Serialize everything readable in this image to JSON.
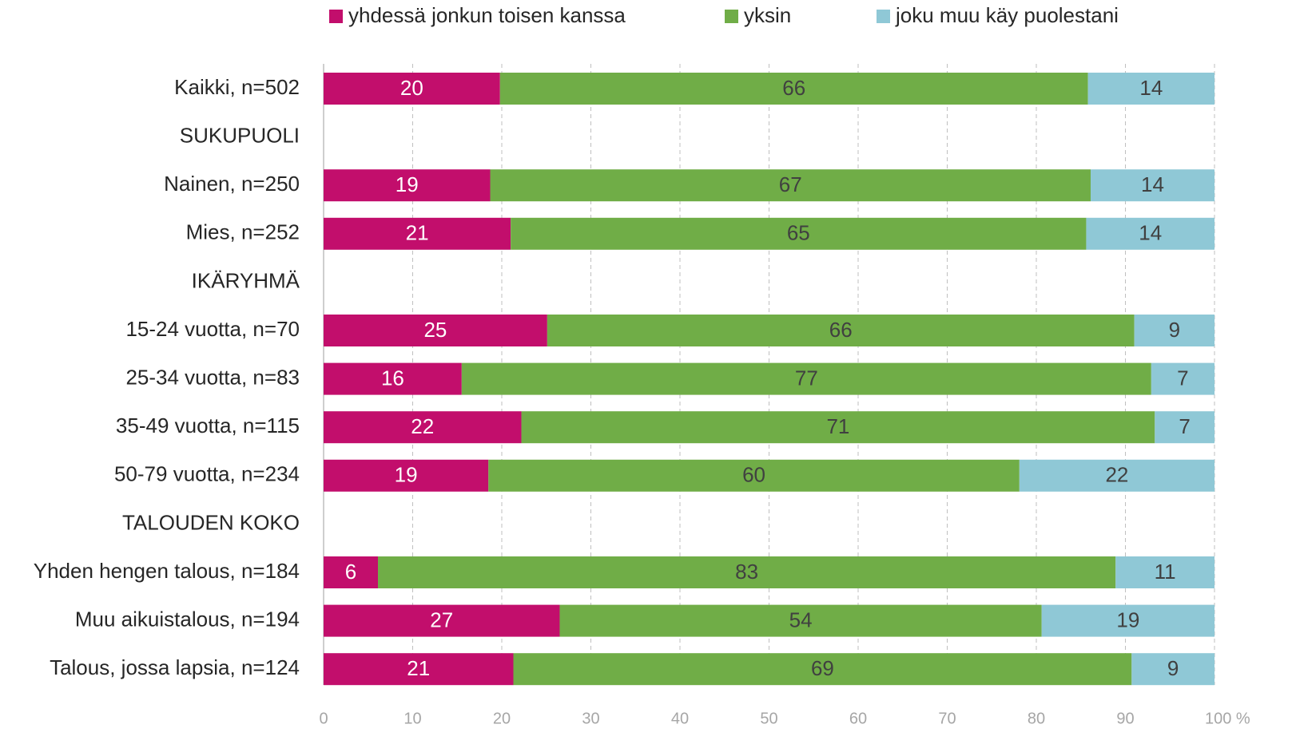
{
  "chart_data": {
    "type": "stacked_bar_horizontal",
    "categories": [
      "Kaikki, n=502",
      "SUKUPUOLI",
      "Nainen, n=250",
      "Mies, n=252",
      "IKÄRYHMÄ",
      "15-24 vuotta, n=70",
      "25-34 vuotta, n=83",
      "35-49 vuotta, n=115",
      "50-79 vuotta, n=234",
      "TALOUDEN KOKO",
      "Yhden hengen talous, n=184",
      "Muu aikuistalous, n=194",
      "Talous, jossa lapsia, n=124"
    ],
    "series": [
      {
        "name": "yhdessä jonkun toisen kanssa",
        "color": "#c20e6c",
        "values": [
          19.8,
          null,
          18.7,
          21.0,
          null,
          25.1,
          15.5,
          22.2,
          18.5,
          null,
          6.1,
          26.5,
          21.3
        ],
        "value_labels": [
          "20",
          null,
          "19",
          "21",
          null,
          "25",
          "16",
          "22",
          "19",
          null,
          "6",
          "27",
          "21"
        ]
      },
      {
        "name": "yksin",
        "color": "#70ad47",
        "values": [
          66.0,
          null,
          67.4,
          64.6,
          null,
          65.9,
          77.4,
          71.1,
          59.6,
          null,
          82.8,
          54.1,
          69.4
        ],
        "value_labels": [
          "66",
          null,
          "67",
          "65",
          null,
          "66",
          "77",
          "71",
          "60",
          null,
          "83",
          "54",
          "69"
        ]
      },
      {
        "name": "joku muu käy puolestani",
        "color": "#8fc8d6",
        "values": [
          14.2,
          null,
          13.9,
          14.4,
          null,
          9.0,
          7.1,
          6.7,
          21.9,
          null,
          11.1,
          19.4,
          9.3
        ],
        "value_labels": [
          "14",
          null,
          "14",
          "14",
          null,
          "9",
          "7",
          "7",
          "22",
          null,
          "11",
          "19",
          "9"
        ]
      }
    ],
    "xlim": [
      0,
      100
    ],
    "xticks": [
      0,
      10,
      20,
      30,
      40,
      50,
      60,
      70,
      80,
      90,
      {
        "value": 100,
        "label": "100 %"
      }
    ],
    "grid": true,
    "legend": "top"
  }
}
